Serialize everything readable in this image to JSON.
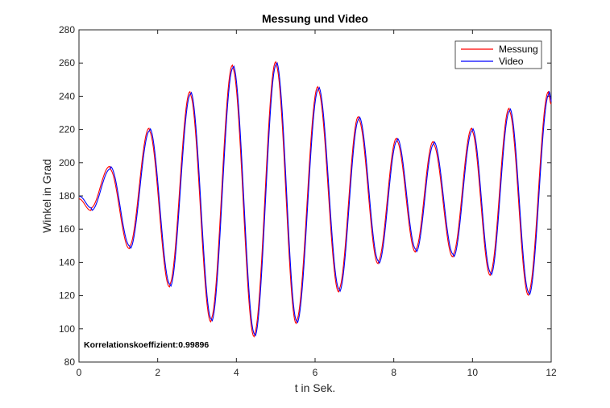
{
  "chart_data": {
    "type": "line",
    "title": "Messung und Video",
    "xlabel": "t in Sek.",
    "ylabel": "Winkel in Grad",
    "xlim": [
      0,
      12
    ],
    "ylim": [
      80,
      280
    ],
    "xticks": [
      0,
      2,
      4,
      6,
      8,
      10,
      12
    ],
    "yticks": [
      80,
      100,
      120,
      140,
      160,
      180,
      200,
      220,
      240,
      260,
      280
    ],
    "grid": false,
    "legend_position": "top-right",
    "annotation": "Korrelationskoeffizient:0.99896",
    "extrema": [
      {
        "t": 0.0,
        "v": 179
      },
      {
        "t": 0.3,
        "v": 172
      },
      {
        "t": 0.78,
        "v": 197
      },
      {
        "t": 1.28,
        "v": 149
      },
      {
        "t": 1.78,
        "v": 220
      },
      {
        "t": 2.3,
        "v": 126
      },
      {
        "t": 2.82,
        "v": 242
      },
      {
        "t": 3.35,
        "v": 105
      },
      {
        "t": 3.9,
        "v": 258
      },
      {
        "t": 4.45,
        "v": 96
      },
      {
        "t": 5.0,
        "v": 260
      },
      {
        "t": 5.52,
        "v": 104
      },
      {
        "t": 6.07,
        "v": 245
      },
      {
        "t": 6.6,
        "v": 123
      },
      {
        "t": 7.1,
        "v": 227
      },
      {
        "t": 7.6,
        "v": 140
      },
      {
        "t": 8.07,
        "v": 214
      },
      {
        "t": 8.55,
        "v": 147
      },
      {
        "t": 9.0,
        "v": 212
      },
      {
        "t": 9.5,
        "v": 144
      },
      {
        "t": 9.98,
        "v": 220
      },
      {
        "t": 10.45,
        "v": 133
      },
      {
        "t": 10.93,
        "v": 232
      },
      {
        "t": 11.42,
        "v": 121
      },
      {
        "t": 11.93,
        "v": 242
      },
      {
        "t": 12.0,
        "v": 236
      }
    ],
    "series": [
      {
        "name": "Messung",
        "color": "#ff0000",
        "offset_t": 0.0,
        "offset_v": -1.5
      },
      {
        "name": "Video",
        "color": "#0000ff",
        "offset_t": 0.015,
        "offset_v": 1.5
      }
    ]
  }
}
